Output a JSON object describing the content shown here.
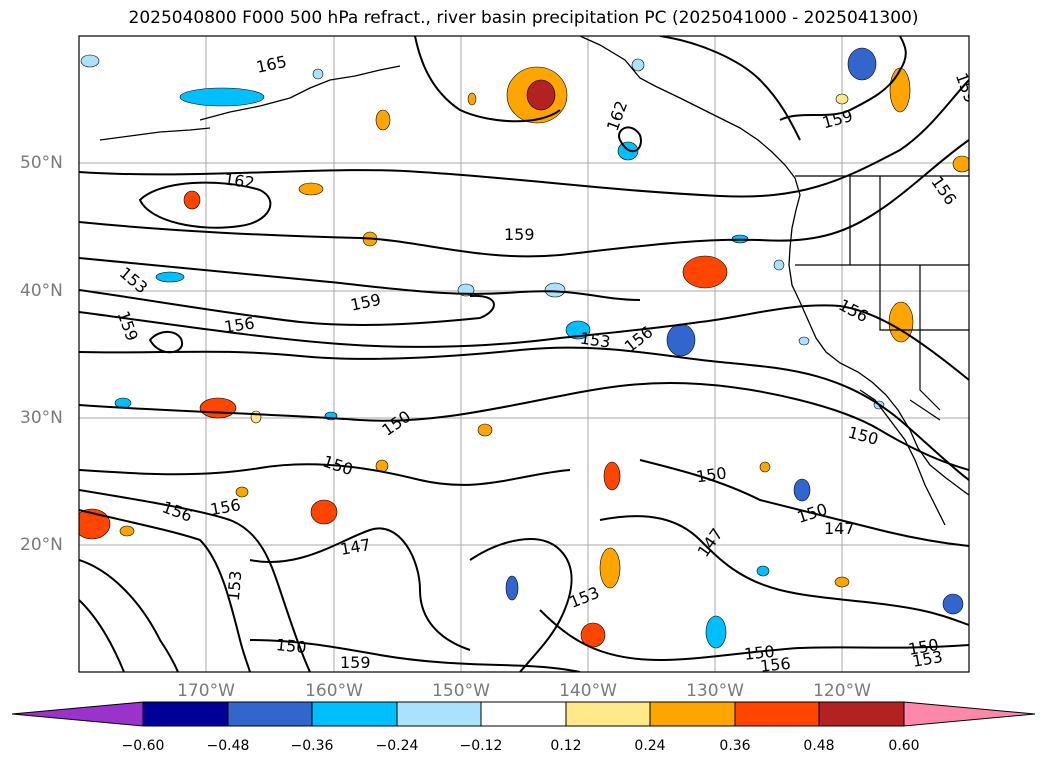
{
  "title": "2025040800 F000 500 hPa refract., river basin precipitation PC (2025041000 - 2025041300)",
  "axes": {
    "lat_ticks": [
      "50°N",
      "40°N",
      "30°N",
      "20°N"
    ],
    "lon_ticks": [
      "170°W",
      "160°W",
      "150°W",
      "140°W",
      "130°W",
      "120°W"
    ]
  },
  "colorbar": {
    "ticks": [
      "−0.60",
      "−0.48",
      "−0.36",
      "−0.24",
      "−0.12",
      "0.12",
      "0.24",
      "0.36",
      "0.48",
      "0.60"
    ],
    "colors": [
      "#9933cc",
      "#000099",
      "#3366cc",
      "#00bfff",
      "#abe2fb",
      "#ffffff",
      "#ffe98a",
      "#ffa500",
      "#ff4500",
      "#b22222",
      "#ff88aa"
    ]
  },
  "contour_labels": [
    "165",
    "162",
    "162",
    "159",
    "159",
    "159",
    "159",
    "159",
    "156",
    "156",
    "156",
    "156",
    "156",
    "153",
    "153",
    "153",
    "153",
    "150",
    "150",
    "150",
    "150",
    "150",
    "150",
    "147",
    "147",
    "147",
    "159",
    "156",
    "153"
  ]
}
